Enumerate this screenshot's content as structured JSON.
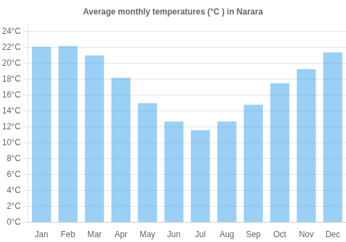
{
  "chart_data": {
    "type": "bar",
    "title": "Average monthly temperatures (°C ) in Narara",
    "categories": [
      "Jan",
      "Feb",
      "Mar",
      "Apr",
      "May",
      "Jun",
      "Jul",
      "Aug",
      "Sep",
      "Oct",
      "Nov",
      "Dec"
    ],
    "values": [
      22.1,
      22.2,
      21.0,
      18.2,
      15.0,
      12.7,
      11.6,
      12.7,
      14.8,
      17.5,
      19.3,
      21.4
    ],
    "ylim": [
      0,
      25
    ],
    "yticks": [
      {
        "value": 0,
        "label": "0°C"
      },
      {
        "value": 2,
        "label": "2°C"
      },
      {
        "value": 4,
        "label": "4°C"
      },
      {
        "value": 6,
        "label": "6°C"
      },
      {
        "value": 8,
        "label": "8°C"
      },
      {
        "value": 10,
        "label": "10°C"
      },
      {
        "value": 12,
        "label": "12°C"
      },
      {
        "value": 14,
        "label": "14°C"
      },
      {
        "value": 16,
        "label": "16°C"
      },
      {
        "value": 18,
        "label": "18°C"
      },
      {
        "value": 20,
        "label": "20°C"
      },
      {
        "value": 22,
        "label": "22°C"
      },
      {
        "value": 24,
        "label": "24°C"
      }
    ],
    "grid": true
  }
}
